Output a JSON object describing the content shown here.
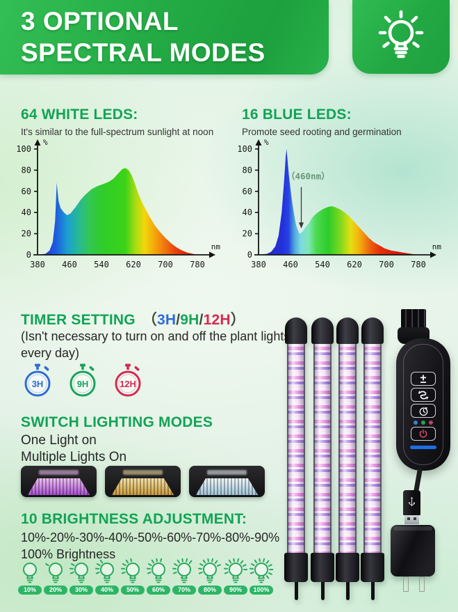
{
  "header": {
    "line1": "3 OPTIONAL",
    "line2": "SPECTRAL MODES",
    "banner_green": "#24ab45",
    "icon": "lightbulb-rays-icon"
  },
  "chart_data": [
    {
      "type": "area",
      "title": "64 WHITE LEDS:",
      "subtitle": "It's similar to the full-spectrum sunlight at noon",
      "xlabel": "nm",
      "ylabel": "%",
      "xlim": [
        380,
        780
      ],
      "ylim": [
        0,
        100
      ],
      "x_ticks": [
        380,
        460,
        540,
        620,
        700,
        780
      ],
      "y_ticks": [
        0,
        20,
        40,
        60,
        80,
        100
      ],
      "grid": false,
      "legend": false,
      "series": [
        {
          "name": "white-led-spectrum",
          "points": [
            [
              380,
              0
            ],
            [
              400,
              1
            ],
            [
              410,
              4
            ],
            [
              418,
              12
            ],
            [
              424,
              32
            ],
            [
              426,
              50
            ],
            [
              428,
              68
            ],
            [
              430,
              60
            ],
            [
              433,
              50
            ],
            [
              438,
              44
            ],
            [
              446,
              40
            ],
            [
              454,
              37.5
            ],
            [
              462,
              39
            ],
            [
              475,
              45
            ],
            [
              488,
              52
            ],
            [
              500,
              57
            ],
            [
              515,
              62
            ],
            [
              530,
              65
            ],
            [
              545,
              67
            ],
            [
              558,
              69
            ],
            [
              570,
              72
            ],
            [
              582,
              77
            ],
            [
              592,
              81
            ],
            [
              600,
              82
            ],
            [
              608,
              80
            ],
            [
              616,
              75
            ],
            [
              624,
              67
            ],
            [
              632,
              58
            ],
            [
              642,
              49
            ],
            [
              652,
              42
            ],
            [
              662,
              35
            ],
            [
              675,
              27
            ],
            [
              688,
              21
            ],
            [
              700,
              16
            ],
            [
              714,
              11
            ],
            [
              728,
              7
            ],
            [
              742,
              4
            ],
            [
              756,
              2
            ],
            [
              768,
              1
            ],
            [
              780,
              0
            ]
          ]
        }
      ],
      "gradient_stops": [
        [
          380,
          "#2b2bc8"
        ],
        [
          425,
          "#1e5ae0"
        ],
        [
          455,
          "#1d9fd0"
        ],
        [
          480,
          "#25b89a"
        ],
        [
          510,
          "#33c653"
        ],
        [
          545,
          "#2fcd27"
        ],
        [
          600,
          "#3bd318"
        ],
        [
          625,
          "#a8dc12"
        ],
        [
          648,
          "#f2d70c"
        ],
        [
          672,
          "#f5a80c"
        ],
        [
          700,
          "#ef7211"
        ],
        [
          725,
          "#e6430d"
        ],
        [
          760,
          "#d92207"
        ],
        [
          780,
          "#cc1705"
        ]
      ]
    },
    {
      "type": "area",
      "title": "16 BLUE LEDS:",
      "subtitle": "Promote seed rooting and germination",
      "xlabel": "nm",
      "ylabel": "%",
      "xlim": [
        380,
        780
      ],
      "ylim": [
        0,
        100
      ],
      "x_ticks": [
        380,
        460,
        540,
        620,
        700,
        780
      ],
      "y_ticks": [
        0,
        20,
        40,
        60,
        80,
        100
      ],
      "grid": false,
      "legend": false,
      "annotation": {
        "text": "（460nm）",
        "label_x_nm": 504,
        "label_pct": 74,
        "arrow_x_nm": 487,
        "arrow_from_pct": 64,
        "arrow_to_pct": 25,
        "color": "#6b9478"
      },
      "series": [
        {
          "name": "blue-led-spectrum",
          "points": [
            [
              380,
              0
            ],
            [
              402,
              1
            ],
            [
              412,
              3
            ],
            [
              422,
              8
            ],
            [
              430,
              18
            ],
            [
              438,
              40
            ],
            [
              444,
              70
            ],
            [
              448,
              93
            ],
            [
              450,
              100
            ],
            [
              452,
              92
            ],
            [
              456,
              75
            ],
            [
              460,
              62
            ],
            [
              464,
              50
            ],
            [
              469,
              38
            ],
            [
              474,
              28
            ],
            [
              482,
              20
            ],
            [
              488,
              21
            ],
            [
              496,
              25
            ],
            [
              506,
              30
            ],
            [
              516,
              36
            ],
            [
              528,
              40
            ],
            [
              540,
              43
            ],
            [
              552,
              45
            ],
            [
              562,
              46
            ],
            [
              572,
              45
            ],
            [
              584,
              43
            ],
            [
              596,
              40
            ],
            [
              608,
              36
            ],
            [
              620,
              31
            ],
            [
              632,
              26
            ],
            [
              644,
              21
            ],
            [
              656,
              16
            ],
            [
              668,
              12
            ],
            [
              682,
              9
            ],
            [
              696,
              6
            ],
            [
              712,
              4
            ],
            [
              728,
              3
            ],
            [
              744,
              2
            ],
            [
              760,
              1
            ],
            [
              780,
              0
            ]
          ]
        }
      ],
      "gradient_stops": [
        [
          380,
          "#2a2ab4"
        ],
        [
          440,
          "#2330dc"
        ],
        [
          455,
          "#2743e2"
        ],
        [
          470,
          "#4fa8dc"
        ],
        [
          485,
          "#7cd8e2"
        ],
        [
          505,
          "#7ee8b4"
        ],
        [
          525,
          "#4ad94e"
        ],
        [
          555,
          "#2ecc2a"
        ],
        [
          585,
          "#7ed81e"
        ],
        [
          610,
          "#e2e012"
        ],
        [
          628,
          "#f2bb0e"
        ],
        [
          645,
          "#f18a10"
        ],
        [
          662,
          "#ea5a0c"
        ],
        [
          685,
          "#e2300a"
        ],
        [
          720,
          "#d81d06"
        ],
        [
          780,
          "#c81405"
        ]
      ]
    }
  ],
  "timer": {
    "title": "TIMER SETTING",
    "prefix": "（",
    "separator": "/",
    "suffix": "）",
    "note1": "(Isn't necessary to turn on and off the plant lights",
    "note2": "every day)",
    "options": [
      {
        "label": "3H",
        "color": "#2e6bd8"
      },
      {
        "label": "9H",
        "color": "#18a35c"
      },
      {
        "label": "12H",
        "color": "#d42a50"
      }
    ]
  },
  "switch_modes": {
    "title": "SWITCH LIGHTING MODES",
    "line1": "One Light on",
    "line2": "Multiple Lights On",
    "thumbnails": [
      {
        "name": "purple-light-thumbnail",
        "glow": "#a94fd0",
        "bright": "#efc2f5"
      },
      {
        "name": "warm-light-thumbnail",
        "glow": "#c99a3c",
        "bright": "#f5e3a8"
      },
      {
        "name": "cool-light-thumbnail",
        "glow": "#9fc4d8",
        "bright": "#f2f8fb"
      }
    ]
  },
  "brightness": {
    "title": "10 BRIGHTNESS ADJUSTMENT:",
    "line1": "10%-20%-30%-40%-50%-60%-70%-80%-90%",
    "line2": "100% Brightness",
    "levels": [
      "10%",
      "20%",
      "30%",
      "40%",
      "50%",
      "60%",
      "70%",
      "80%",
      "90%",
      "100%"
    ],
    "rays": [
      0,
      1,
      3,
      4,
      5,
      6,
      7,
      8,
      9,
      11
    ],
    "bulb_color": "#2aa95f",
    "pill_color": "#2cb566"
  },
  "controller": {
    "buttons": [
      "brightness-plus-minus-icon",
      "mode-cycle-icon",
      "timer-clock-icon",
      "power-icon"
    ],
    "indicator_colors": [
      "#3a7fd0",
      "#2f9e57",
      "#b4475e"
    ],
    "status_bar_color": "#1e6ee8",
    "power_color": "#d84a66"
  }
}
